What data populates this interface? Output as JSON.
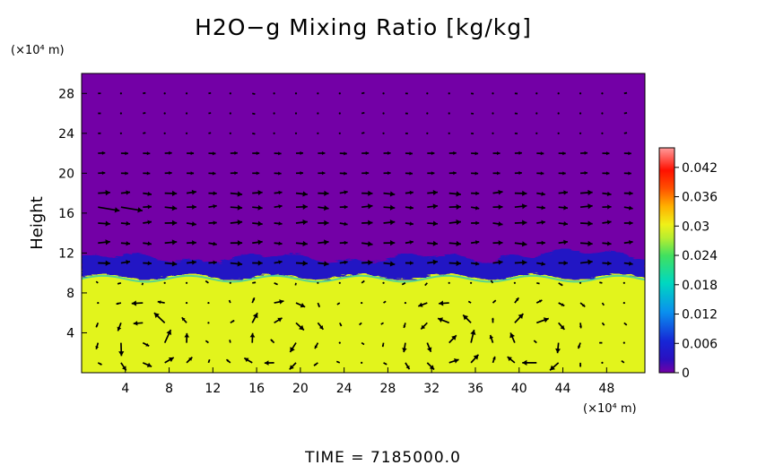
{
  "chart_data": {
    "type": "heatmap",
    "title": "H2O−g Mixing Ratio [kg/kg]",
    "xlabel": "",
    "x_unit": "(×10⁴ m)",
    "ylabel": "Height",
    "y_unit": "(×10⁴ m)",
    "xlim": [
      0,
      51.5
    ],
    "ylim": [
      0,
      30
    ],
    "x_ticks": [
      4,
      8,
      12,
      16,
      20,
      24,
      28,
      32,
      36,
      40,
      44,
      48
    ],
    "y_ticks": [
      4,
      8,
      12,
      16,
      20,
      24,
      28
    ],
    "grid": false,
    "colorbar": {
      "range": [
        0,
        0.046
      ],
      "ticks": [
        0,
        0.006,
        0.012,
        0.018,
        0.024,
        0.03,
        0.036,
        0.042
      ],
      "tick_labels": [
        "0",
        "0.006",
        "0.012",
        "0.018",
        "0.024",
        "0.03",
        "0.036",
        "0.042"
      ],
      "palette": [
        "#7300a6",
        "#1a10c8",
        "#0088ee",
        "#00d8a0",
        "#60e040",
        "#e4f01c",
        "#ffb000",
        "#ff2000",
        "#ff8a8a"
      ]
    },
    "field": {
      "lower_layer": {
        "value": 0.028,
        "top_height": 10.3,
        "color": "#e2f41c"
      },
      "transition_band": {
        "value": 0.006,
        "bottom_height": 9.6,
        "top_height": 11.5,
        "color": "#2316c4"
      },
      "upper_layer": {
        "value": 0.0,
        "color": "#7300a6"
      }
    },
    "wind_vectors": "arrow field overlay",
    "circulation_cells_x": [
      6,
      18,
      33,
      42
    ],
    "circulation_cells_height": 3.5,
    "arrow_rows_y": [
      1,
      3,
      5,
      7,
      9,
      11,
      13,
      15,
      16.6,
      18,
      20,
      22,
      24,
      26,
      28
    ],
    "arrow_cols_x": [
      1.5,
      3.6,
      5.6,
      7.6,
      9.6,
      11.6,
      13.6,
      15.6,
      17.6,
      19.6,
      21.6,
      23.6,
      25.6,
      27.6,
      29.6,
      31.6,
      33.6,
      35.6,
      37.6,
      39.6,
      41.6,
      43.6,
      45.6,
      47.6,
      49.6
    ]
  },
  "footer": {
    "time_label": "TIME  =  7185000.0"
  }
}
